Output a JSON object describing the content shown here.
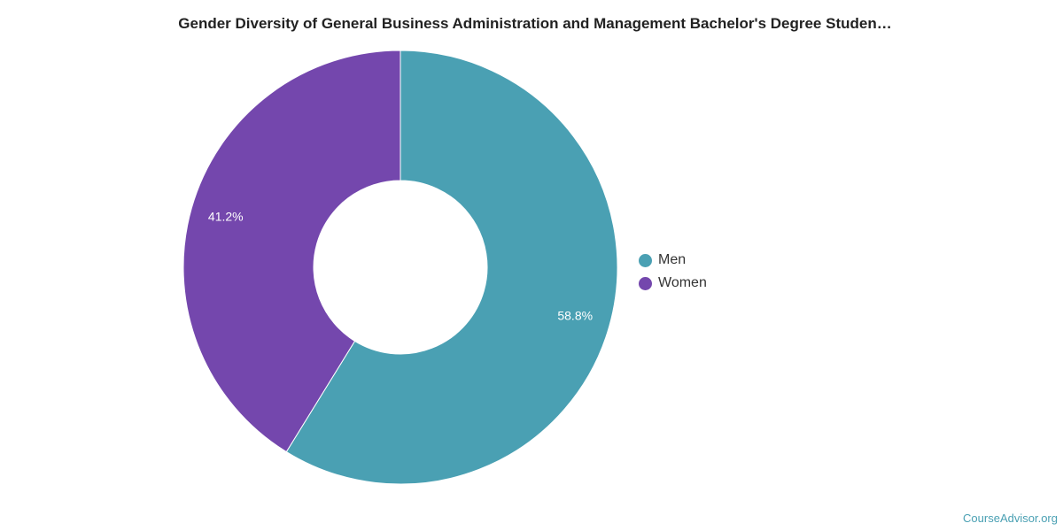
{
  "chart_data": {
    "type": "pie",
    "title": "Gender Diversity of General Business Administration and Management Bachelor's Degree Studen…",
    "categories": [
      "Men",
      "Women"
    ],
    "values": [
      58.8,
      41.2
    ],
    "labels": [
      "58.8%",
      "41.2%"
    ],
    "colors": [
      "#4aa0b3",
      "#7447ad"
    ],
    "donut": true,
    "legend_position": "right"
  },
  "watermark": "CourseAdvisor.org"
}
